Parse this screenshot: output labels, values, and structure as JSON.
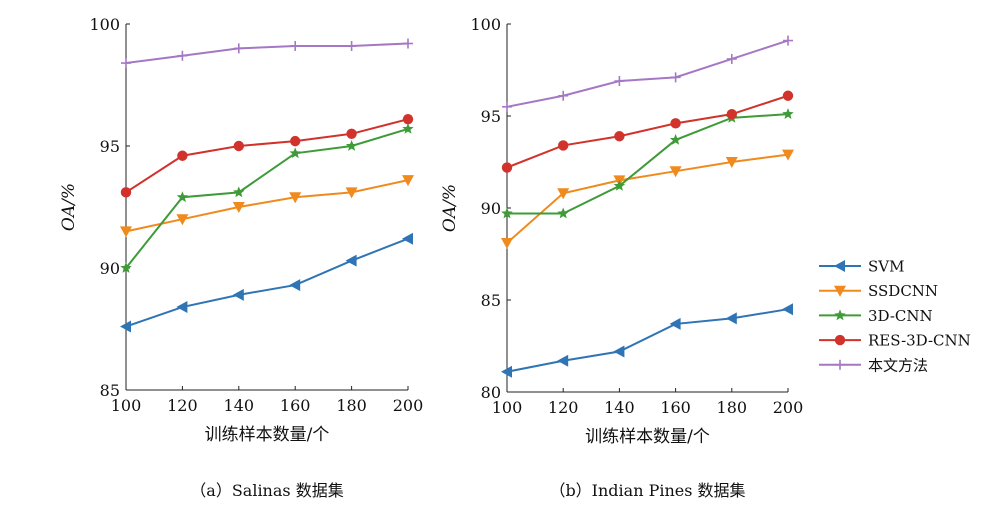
{
  "colors": {
    "SVM": "#2f74b5",
    "SSDCNN": "#f08a1c",
    "3D-CNN": "#3e9b38",
    "RES-3D-CNN": "#d1332c",
    "本文方法": "#a577c4"
  },
  "chart_data": [
    {
      "type": "line",
      "caption": "（a）Salinas 数据集",
      "xlabel": "训练样本数量/个",
      "ylabel": "OA/%",
      "xlim": [
        100,
        200
      ],
      "ylim": [
        85,
        100
      ],
      "x": [
        100,
        120,
        140,
        160,
        180,
        200
      ],
      "xticks": [
        "100",
        "120",
        "140",
        "160",
        "180",
        "200"
      ],
      "yticks": [
        "85",
        "90",
        "95",
        "100"
      ],
      "series": [
        {
          "name": "SVM",
          "values": [
            87.6,
            88.4,
            88.9,
            89.3,
            90.3,
            91.2
          ]
        },
        {
          "name": "SSDCNN",
          "values": [
            91.5,
            92.0,
            92.5,
            92.9,
            93.1,
            93.6
          ]
        },
        {
          "name": "3D-CNN",
          "values": [
            90.0,
            92.9,
            93.1,
            94.7,
            95.0,
            95.7
          ]
        },
        {
          "name": "RES-3D-CNN",
          "values": [
            93.1,
            94.6,
            95.0,
            95.2,
            95.5,
            96.1
          ]
        },
        {
          "name": "本文方法",
          "values": [
            98.4,
            98.7,
            99.0,
            99.1,
            99.1,
            99.2
          ]
        }
      ]
    },
    {
      "type": "line",
      "caption": "（b）Indian Pines 数据集",
      "xlabel": "训练样本数量/个",
      "ylabel": "OA/%",
      "xlim": [
        100,
        200
      ],
      "ylim": [
        80,
        100
      ],
      "x": [
        100,
        120,
        140,
        160,
        180,
        200
      ],
      "xticks": [
        "100",
        "120",
        "140",
        "160",
        "180",
        "200"
      ],
      "yticks": [
        "80",
        "85",
        "90",
        "95",
        "100"
      ],
      "series": [
        {
          "name": "SVM",
          "values": [
            81.1,
            81.7,
            82.2,
            83.7,
            84.0,
            84.5
          ]
        },
        {
          "name": "SSDCNN",
          "values": [
            88.1,
            90.8,
            91.5,
            92.0,
            92.5,
            92.9
          ]
        },
        {
          "name": "3D-CNN",
          "values": [
            89.7,
            89.7,
            91.2,
            93.7,
            94.9,
            95.1
          ]
        },
        {
          "name": "RES-3D-CNN",
          "values": [
            92.2,
            93.4,
            93.9,
            94.6,
            95.1,
            96.1
          ]
        },
        {
          "name": "本文方法",
          "values": [
            95.5,
            96.1,
            96.9,
            97.1,
            98.1,
            99.1
          ]
        }
      ]
    }
  ],
  "legend": {
    "position": "right",
    "items": [
      "SVM",
      "SSDCNN",
      "3D-CNN",
      "RES-3D-CNN",
      "本文方法"
    ]
  }
}
